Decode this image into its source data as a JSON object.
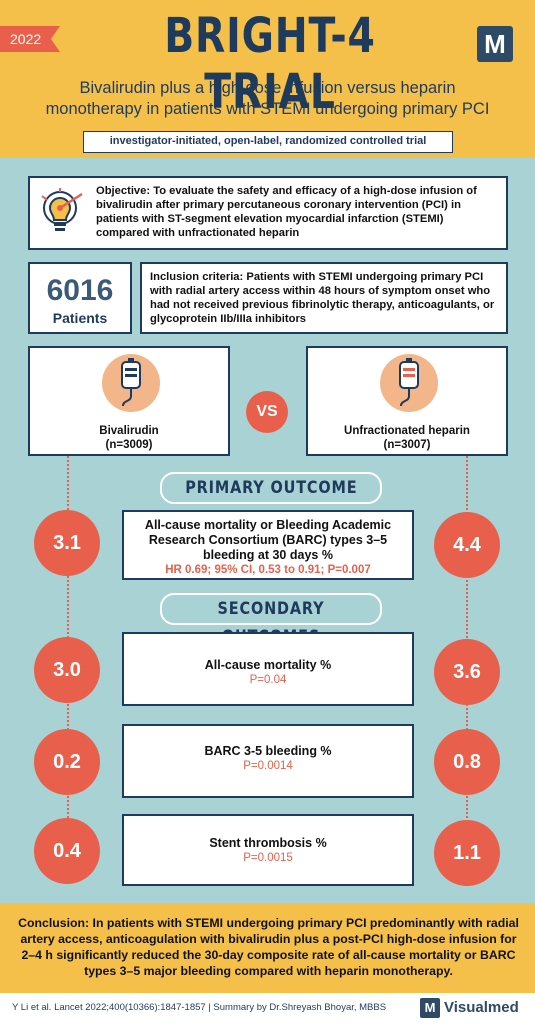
{
  "header": {
    "year": "2022",
    "title": "BRIGHT-4 TRIAL",
    "subtitle_line1": "Bivalirudin plus a high-dose infusion versus heparin",
    "subtitle_line2": "monotherapy in patients with STEMI undergoing primary PCI",
    "design": "investigator-initiated, open-label, randomized controlled trial",
    "logo_letter": "M"
  },
  "objective": {
    "text": "Objective: To evaluate the safety and efficacy of a high-dose infusion of bivalirudin after primary percutaneous coronary intervention (PCI) in patients with ST-segment elevation myocardial infarction (STEMI) compared with unfractionated heparin",
    "icon": "lightbulb-target-icon"
  },
  "patients": {
    "count": "6016",
    "label": "Patients"
  },
  "inclusion": {
    "text": "Inclusion criteria: Patients with STEMI undergoing primary PCI with radial artery access within 48 hours of symptom onset who had not received previous fibrinolytic therapy, anticoagulants, or glycoprotein IIb/IIIa inhibitors"
  },
  "arms": {
    "left": {
      "name": "Bivalirudin",
      "n": "(n=3009)",
      "icon": "iv-bag-icon"
    },
    "right": {
      "name": "Unfractionated heparin",
      "n": "(n=3007)",
      "icon": "iv-bag-icon"
    },
    "vs": "VS"
  },
  "primary": {
    "heading": "PRIMARY OUTCOME",
    "left_value": "3.1",
    "right_value": "4.4",
    "title": "All-cause mortality or Bleeding Academic Research Consortium (BARC) types 3–5 bleeding at 30 days %",
    "stat": "HR 0.69; 95% CI, 0.53 to 0.91; P=0.007"
  },
  "secondary": {
    "heading": "SECONDARY OUTCOMES",
    "items": [
      {
        "title": "All-cause mortality %",
        "p": "P=0.04",
        "left_value": "3.0",
        "right_value": "3.6"
      },
      {
        "title": "BARC 3-5 bleeding %",
        "p": "P=0.0014",
        "left_value": "0.2",
        "right_value": "0.8"
      },
      {
        "title": "Stent thrombosis %",
        "p": "P=0.0015",
        "left_value": "0.4",
        "right_value": "1.1"
      }
    ]
  },
  "conclusion": {
    "text": "Conclusion: In patients with STEMI undergoing primary PCI predominantly with radial artery access, anticoagulation with bivalirudin plus a post-PCI high-dose infusion for 2–4 h significantly reduced the 30-day composite rate of all-cause mortality or BARC types 3–5 major bleeding compared with heparin monotherapy."
  },
  "footer": {
    "citation": "Y Li et al.  Lancet 2022;400(10366):1847-1857 | Summary by Dr.Shreyash Bhoyar, MBBS",
    "brand": "Visualmed",
    "logo_letter": "M"
  },
  "colors": {
    "header_bg": "#f5c04a",
    "main_bg": "#a9d2d4",
    "accent": "#e8604c",
    "navy": "#1e3a5c"
  }
}
